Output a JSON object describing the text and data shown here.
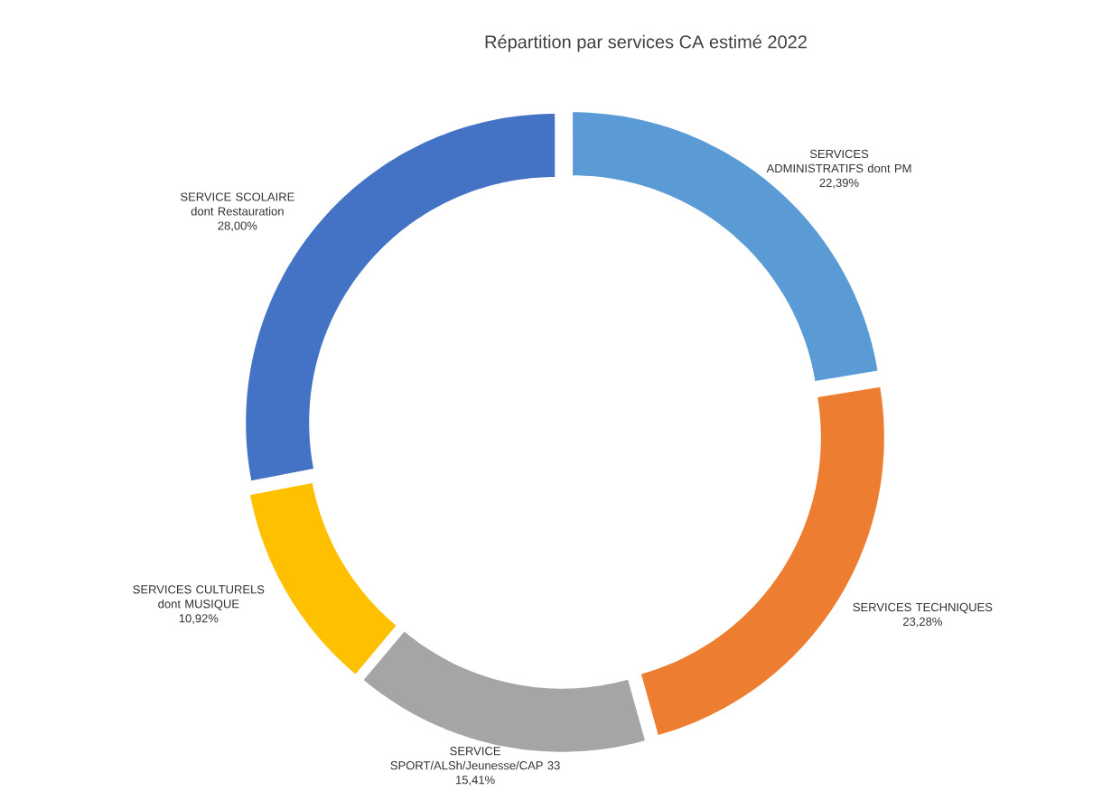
{
  "chart_data": {
    "type": "donut",
    "title": "Répartition par services CA estimé 2022",
    "categories": [
      "SERVICES ADMINISTRATIFS dont PM",
      "SERVICES TECHNIQUES",
      "SERVICE SPORT/ALSh/Jeunesse/CAP 33",
      "SERVICES CULTURELS dont MUSIQUE",
      "SERVICE SCOLAIRE dont Restauration"
    ],
    "values": [
      22.39,
      23.28,
      15.41,
      10.92,
      28.0
    ],
    "value_labels": [
      "22,39%",
      "23,28%",
      "15,41%",
      "10,92%",
      "28,00%"
    ],
    "colors": [
      "#5b9bd5",
      "#ed7d31",
      "#a5a5a5",
      "#ffc000",
      "#4472c4"
    ]
  }
}
